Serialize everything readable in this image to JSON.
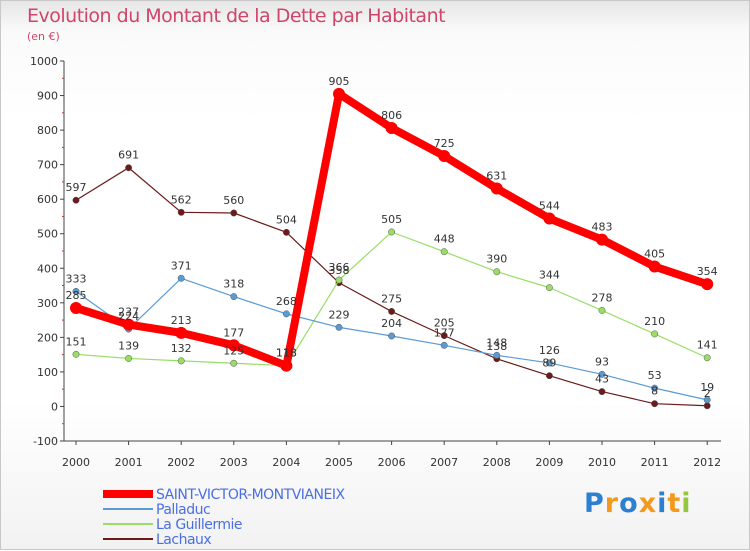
{
  "header": {
    "title": "Evolution du Montant de la Dette par Habitant",
    "subtitle": "(en €)"
  },
  "chart_data": {
    "type": "line",
    "title": "Evolution du Montant de la Dette par Habitant",
    "ylabel": "(en €)",
    "x": [
      "2000",
      "2001",
      "2002",
      "2003",
      "2004",
      "2005",
      "2006",
      "2007",
      "2008",
      "2009",
      "2010",
      "2011",
      "2012"
    ],
    "y_ticks": [
      "-100",
      "0",
      "100",
      "200",
      "300",
      "400",
      "500",
      "600",
      "700",
      "800",
      "900",
      "1000"
    ],
    "ylim": [
      -100,
      1000
    ],
    "grid": false,
    "legend_position": "bottom-left",
    "series": [
      {
        "name": "Lachaux",
        "color": "#6b1b1b",
        "bold": false,
        "values": [
          597,
          691,
          562,
          560,
          504,
          358,
          275,
          205,
          138,
          89,
          43,
          8,
          2
        ],
        "labels": [
          "597",
          "691",
          "562",
          "560",
          "504",
          "358",
          "275",
          "205",
          "138",
          "89",
          "43",
          "8",
          "2"
        ]
      },
      {
        "name": "La Guillermie",
        "color": "#99dd66",
        "bold": false,
        "values": [
          151,
          139,
          132,
          125,
          118,
          366,
          505,
          448,
          390,
          344,
          278,
          210,
          141
        ],
        "labels": [
          "151",
          "139",
          "132",
          "125",
          "118",
          "366",
          "505",
          "448",
          "390",
          "344",
          "278",
          "210",
          "141"
        ]
      },
      {
        "name": "Palladuc",
        "color": "#5b9bd5",
        "bold": false,
        "values": [
          333,
          224,
          371,
          318,
          268,
          229,
          204,
          177,
          148,
          126,
          93,
          53,
          19
        ],
        "labels": [
          "333",
          "224",
          "371",
          "318",
          "268",
          "229",
          "204",
          "177",
          "148",
          "126",
          "93",
          "53",
          "19"
        ]
      },
      {
        "name": "SAINT-VICTOR-MONTVIANEIX",
        "color": "#ff0000",
        "bold": true,
        "values": [
          285,
          237,
          213,
          177,
          118,
          905,
          806,
          725,
          631,
          544,
          483,
          405,
          354
        ],
        "labels": [
          "285",
          "237",
          "213",
          "177",
          "118",
          "905",
          "806",
          "725",
          "631",
          "544",
          "483",
          "405",
          "354"
        ]
      }
    ],
    "legend": [
      {
        "name": "SAINT-VICTOR-MONTVIANEIX",
        "color": "#ff0000",
        "bold": true
      },
      {
        "name": "Palladuc",
        "color": "#5b9bd5",
        "bold": false
      },
      {
        "name": "La Guillermie",
        "color": "#99dd66",
        "bold": false
      },
      {
        "name": "Lachaux",
        "color": "#6b1b1b",
        "bold": false
      }
    ]
  },
  "logo": {
    "text": "Proxiti",
    "letter_colors": [
      "#2d7fcf",
      "#f39a1c",
      "#2d7fcf",
      "#f39a1c",
      "#2d7fcf",
      "#f39a1c",
      "#93c83e"
    ]
  },
  "colors": {
    "legend_text": "#4a6fe0",
    "axis": "#333333",
    "title": "#d0456a"
  }
}
